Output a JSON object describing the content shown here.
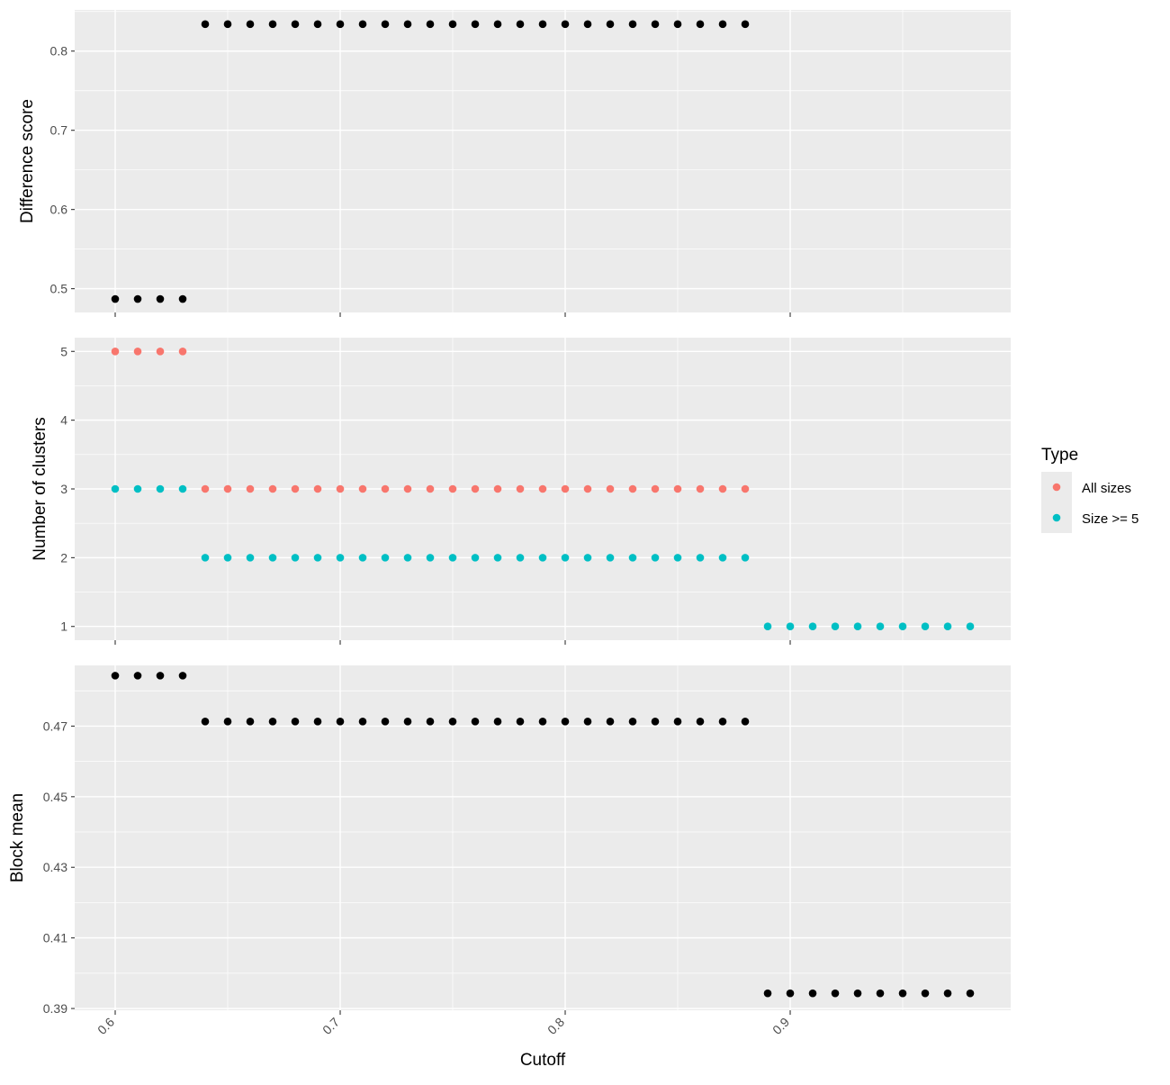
{
  "chart_data": {
    "type": "scatter",
    "x_axis": {
      "label": "Cutoff",
      "ticks": [
        0.6,
        0.7,
        0.8,
        0.9
      ],
      "tick_labels": [
        "0.6",
        "0.7",
        "0.8",
        "0.9"
      ],
      "range": [
        0.582,
        0.998
      ]
    },
    "grid": true,
    "legend": {
      "title": "Type",
      "placement": "right",
      "entries": [
        {
          "label": "All sizes",
          "color": "#f8766d"
        },
        {
          "label": "Size >= 5",
          "color": "#00bfc4"
        }
      ]
    },
    "panels": [
      {
        "ylabel": "Difference score",
        "ylim": [
          0.47,
          0.852
        ],
        "yticks": [
          0.5,
          0.6,
          0.7,
          0.8
        ],
        "ytick_labels": [
          "0.5",
          "0.6",
          "0.7",
          "0.8"
        ],
        "series": [
          {
            "color": "#000000",
            "segments": [
              {
                "x_start": 0.6,
                "x_end": 0.63,
                "y": 0.487
              },
              {
                "x_start": 0.64,
                "x_end": 0.88,
                "y": 0.834
              }
            ]
          }
        ]
      },
      {
        "ylabel": "Number of clusters",
        "ylim": [
          0.8,
          5.2
        ],
        "yticks": [
          1,
          2,
          3,
          4,
          5
        ],
        "ytick_labels": [
          "1",
          "2",
          "3",
          "4",
          "5"
        ],
        "series": [
          {
            "name": "All sizes",
            "color": "#f8766d",
            "segments": [
              {
                "x_start": 0.6,
                "x_end": 0.63,
                "y": 5
              },
              {
                "x_start": 0.64,
                "x_end": 0.88,
                "y": 3
              }
            ]
          },
          {
            "name": "Size >= 5",
            "color": "#00bfc4",
            "segments": [
              {
                "x_start": 0.6,
                "x_end": 0.63,
                "y": 3
              },
              {
                "x_start": 0.64,
                "x_end": 0.88,
                "y": 2
              },
              {
                "x_start": 0.89,
                "x_end": 0.98,
                "y": 1
              }
            ]
          }
        ]
      },
      {
        "ylabel": "Block mean",
        "ylim": [
          0.3895,
          0.4872
        ],
        "yticks": [
          0.39,
          0.41,
          0.43,
          0.45,
          0.47
        ],
        "ytick_labels": [
          "0.39",
          "0.41",
          "0.43",
          "0.45",
          "0.47"
        ],
        "series": [
          {
            "color": "#000000",
            "segments": [
              {
                "x_start": 0.6,
                "x_end": 0.63,
                "y": 0.4843
              },
              {
                "x_start": 0.64,
                "x_end": 0.88,
                "y": 0.4713
              },
              {
                "x_start": 0.89,
                "x_end": 0.98,
                "y": 0.3943
              }
            ]
          }
        ]
      }
    ]
  }
}
